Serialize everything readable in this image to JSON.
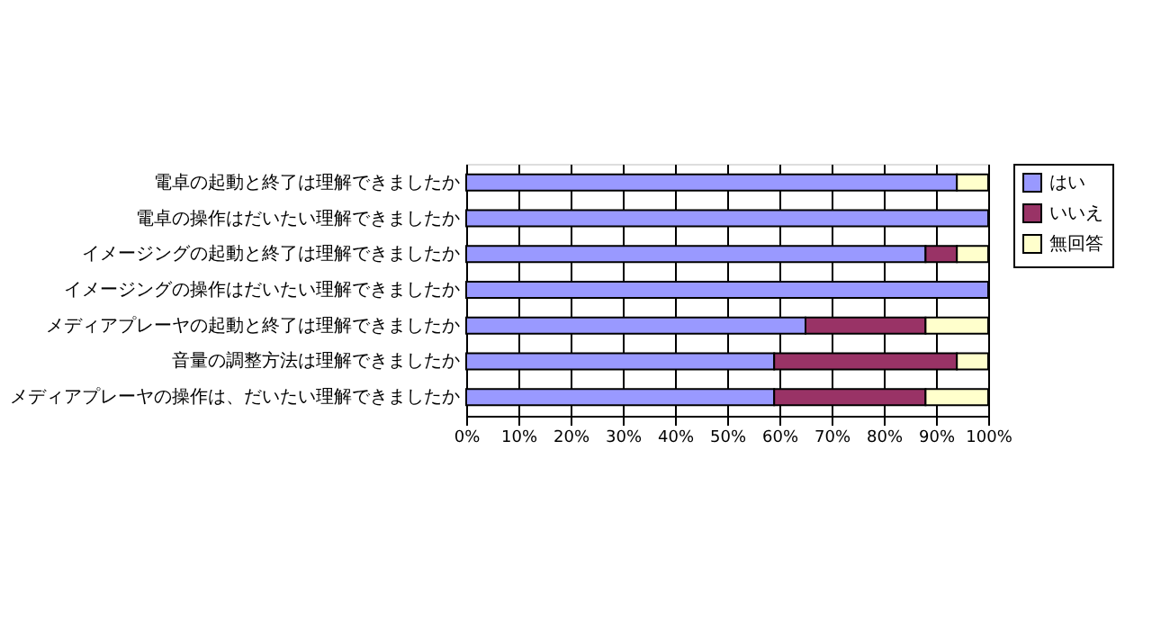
{
  "chart_data": {
    "type": "bar",
    "orientation": "horizontal",
    "stacked": true,
    "categories": [
      "電卓の起動と終了は理解できましたか",
      "電卓の操作はだいたい理解できましたか",
      "イメージングの起動と終了は理解できましたか",
      "イメージングの操作はだいたい理解できましたか",
      "メディアプレーヤの起動と終了は理解できましたか",
      "音量の調整方法は理解できましたか",
      "メディアプレーヤの操作は、だいたい理解できましたか"
    ],
    "series": [
      {
        "name": "はい",
        "color": "#9999ff",
        "values": [
          94,
          100,
          88,
          100,
          65,
          59,
          59
        ]
      },
      {
        "name": "いいえ",
        "color": "#993366",
        "values": [
          null,
          null,
          6,
          null,
          23,
          35,
          29
        ]
      },
      {
        "name": "無回答",
        "color": "#ffffcc",
        "values": [
          6,
          null,
          6,
          null,
          12,
          6,
          12
        ]
      }
    ],
    "xlim": [
      0,
      100
    ],
    "xticks": [
      {
        "value": 0,
        "label": "0%"
      },
      {
        "value": 10,
        "label": "10%"
      },
      {
        "value": 20,
        "label": "20%"
      },
      {
        "value": 30,
        "label": "30%"
      },
      {
        "value": 40,
        "label": "40%"
      },
      {
        "value": 50,
        "label": "50%"
      },
      {
        "value": 60,
        "label": "60%"
      },
      {
        "value": 70,
        "label": "70%"
      },
      {
        "value": 80,
        "label": "80%"
      },
      {
        "value": 90,
        "label": "90%"
      },
      {
        "value": 100,
        "label": "100%"
      }
    ],
    "grid": "x",
    "legend": "right"
  }
}
